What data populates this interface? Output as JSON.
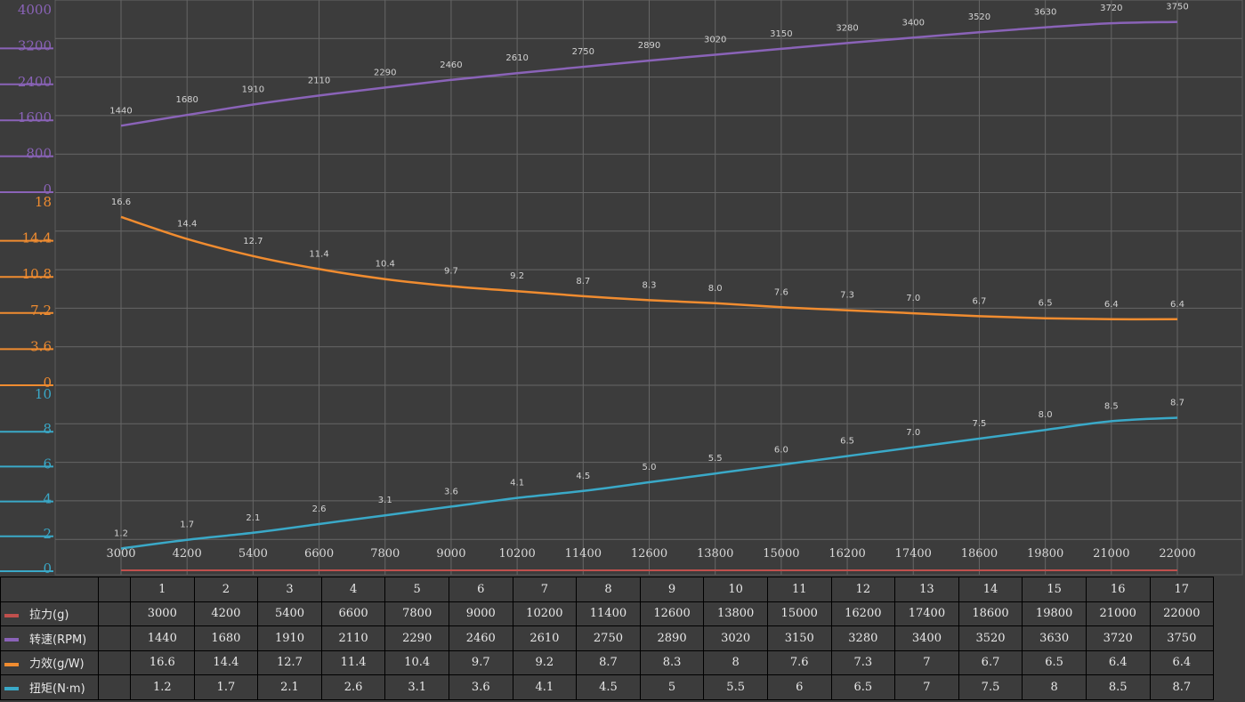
{
  "chart_data": {
    "type": "line",
    "x": [
      3000,
      4200,
      5400,
      6600,
      7800,
      9000,
      10200,
      11400,
      12600,
      13800,
      15000,
      16200,
      17400,
      18600,
      19800,
      21000,
      22000
    ],
    "series": [
      {
        "key": "rpm",
        "name": "转速(RPM)",
        "color": "#8a63b8",
        "values": [
          1440,
          1680,
          1910,
          2110,
          2290,
          2460,
          2610,
          2750,
          2890,
          3020,
          3150,
          3280,
          3400,
          3520,
          3630,
          3720,
          3750
        ],
        "labels": [
          "1440",
          "1680",
          "1910",
          "2110",
          "2290",
          "2460",
          "2610",
          "2750",
          "2890",
          "3020",
          "3150",
          "3280",
          "3400",
          "3520",
          "3630",
          "3720",
          "3750"
        ],
        "axis_ticks": [
          "4000",
          "3200",
          "2400",
          "1600",
          "800",
          "0"
        ],
        "ylim": [
          0,
          4000
        ]
      },
      {
        "key": "eff",
        "name": "力效(g/W)",
        "color": "#f08c30",
        "values": [
          16.6,
          14.4,
          12.7,
          11.4,
          10.4,
          9.7,
          9.2,
          8.7,
          8.3,
          8.0,
          7.6,
          7.3,
          7.0,
          6.7,
          6.5,
          6.4,
          6.4
        ],
        "labels": [
          "16.6",
          "14.4",
          "12.7",
          "11.4",
          "10.4",
          "9.7",
          "9.2",
          "8.7",
          "8.3",
          "8.0",
          "7.6",
          "7.3",
          "7.0",
          "6.7",
          "6.5",
          "6.4",
          "6.4"
        ],
        "axis_ticks": [
          "18",
          "14.4",
          "10.8",
          "7.2",
          "3.6",
          "0"
        ],
        "ylim": [
          0,
          18
        ]
      },
      {
        "key": "torque",
        "name": "扭矩(N·m)",
        "color": "#3aa9c8",
        "values": [
          1.2,
          1.7,
          2.1,
          2.6,
          3.1,
          3.6,
          4.1,
          4.5,
          5.0,
          5.5,
          6.0,
          6.5,
          7.0,
          7.5,
          8.0,
          8.5,
          8.7
        ],
        "labels": [
          "1.2",
          "1.7",
          "2.1",
          "2.6",
          "3.1",
          "3.6",
          "4.1",
          "4.5",
          "5.0",
          "5.5",
          "6.0",
          "6.5",
          "7.0",
          "7.5",
          "8.0",
          "8.5",
          "8.7"
        ],
        "axis_ticks": [
          "10",
          "8",
          "6",
          "4",
          "2",
          "0"
        ],
        "ylim": [
          0,
          10
        ]
      },
      {
        "key": "pull",
        "name": "拉力(g)",
        "color": "#c0504d",
        "values": [
          3000,
          4200,
          5400,
          6600,
          7800,
          9000,
          10200,
          11400,
          12600,
          13800,
          15000,
          16200,
          17400,
          18600,
          19800,
          21000,
          22000
        ]
      }
    ],
    "x_tick_labels": [
      "3000",
      "4200",
      "5400",
      "6600",
      "7800",
      "9000",
      "10200",
      "11400",
      "12600",
      "13800",
      "15000",
      "16200",
      "17400",
      "18600",
      "19800",
      "21000",
      "22000"
    ],
    "grid": true
  },
  "table": {
    "header": [
      "1",
      "2",
      "3",
      "4",
      "5",
      "6",
      "7",
      "8",
      "9",
      "10",
      "11",
      "12",
      "13",
      "14",
      "15",
      "16",
      "17"
    ],
    "rows": [
      {
        "label": "拉力(g)",
        "color": "#c0504d",
        "cells": [
          "3000",
          "4200",
          "5400",
          "6600",
          "7800",
          "9000",
          "10200",
          "11400",
          "12600",
          "13800",
          "15000",
          "16200",
          "17400",
          "18600",
          "19800",
          "21000",
          "22000"
        ]
      },
      {
        "label": "转速(RPM)",
        "color": "#8a63b8",
        "cells": [
          "1440",
          "1680",
          "1910",
          "2110",
          "2290",
          "2460",
          "2610",
          "2750",
          "2890",
          "3020",
          "3150",
          "3280",
          "3400",
          "3520",
          "3630",
          "3720",
          "3750"
        ]
      },
      {
        "label": "力效(g/W)",
        "color": "#f08c30",
        "cells": [
          "16.6",
          "14.4",
          "12.7",
          "11.4",
          "10.4",
          "9.7",
          "9.2",
          "8.7",
          "8.3",
          "8",
          "7.6",
          "7.3",
          "7",
          "6.7",
          "6.5",
          "6.4",
          "6.4"
        ]
      },
      {
        "label": "扭矩(N·m)",
        "color": "#3aa9c8",
        "cells": [
          "1.2",
          "1.7",
          "2.1",
          "2.6",
          "3.1",
          "3.6",
          "4.1",
          "4.5",
          "5",
          "5.5",
          "6",
          "6.5",
          "7",
          "7.5",
          "8",
          "8.5",
          "8.7"
        ]
      }
    ]
  }
}
